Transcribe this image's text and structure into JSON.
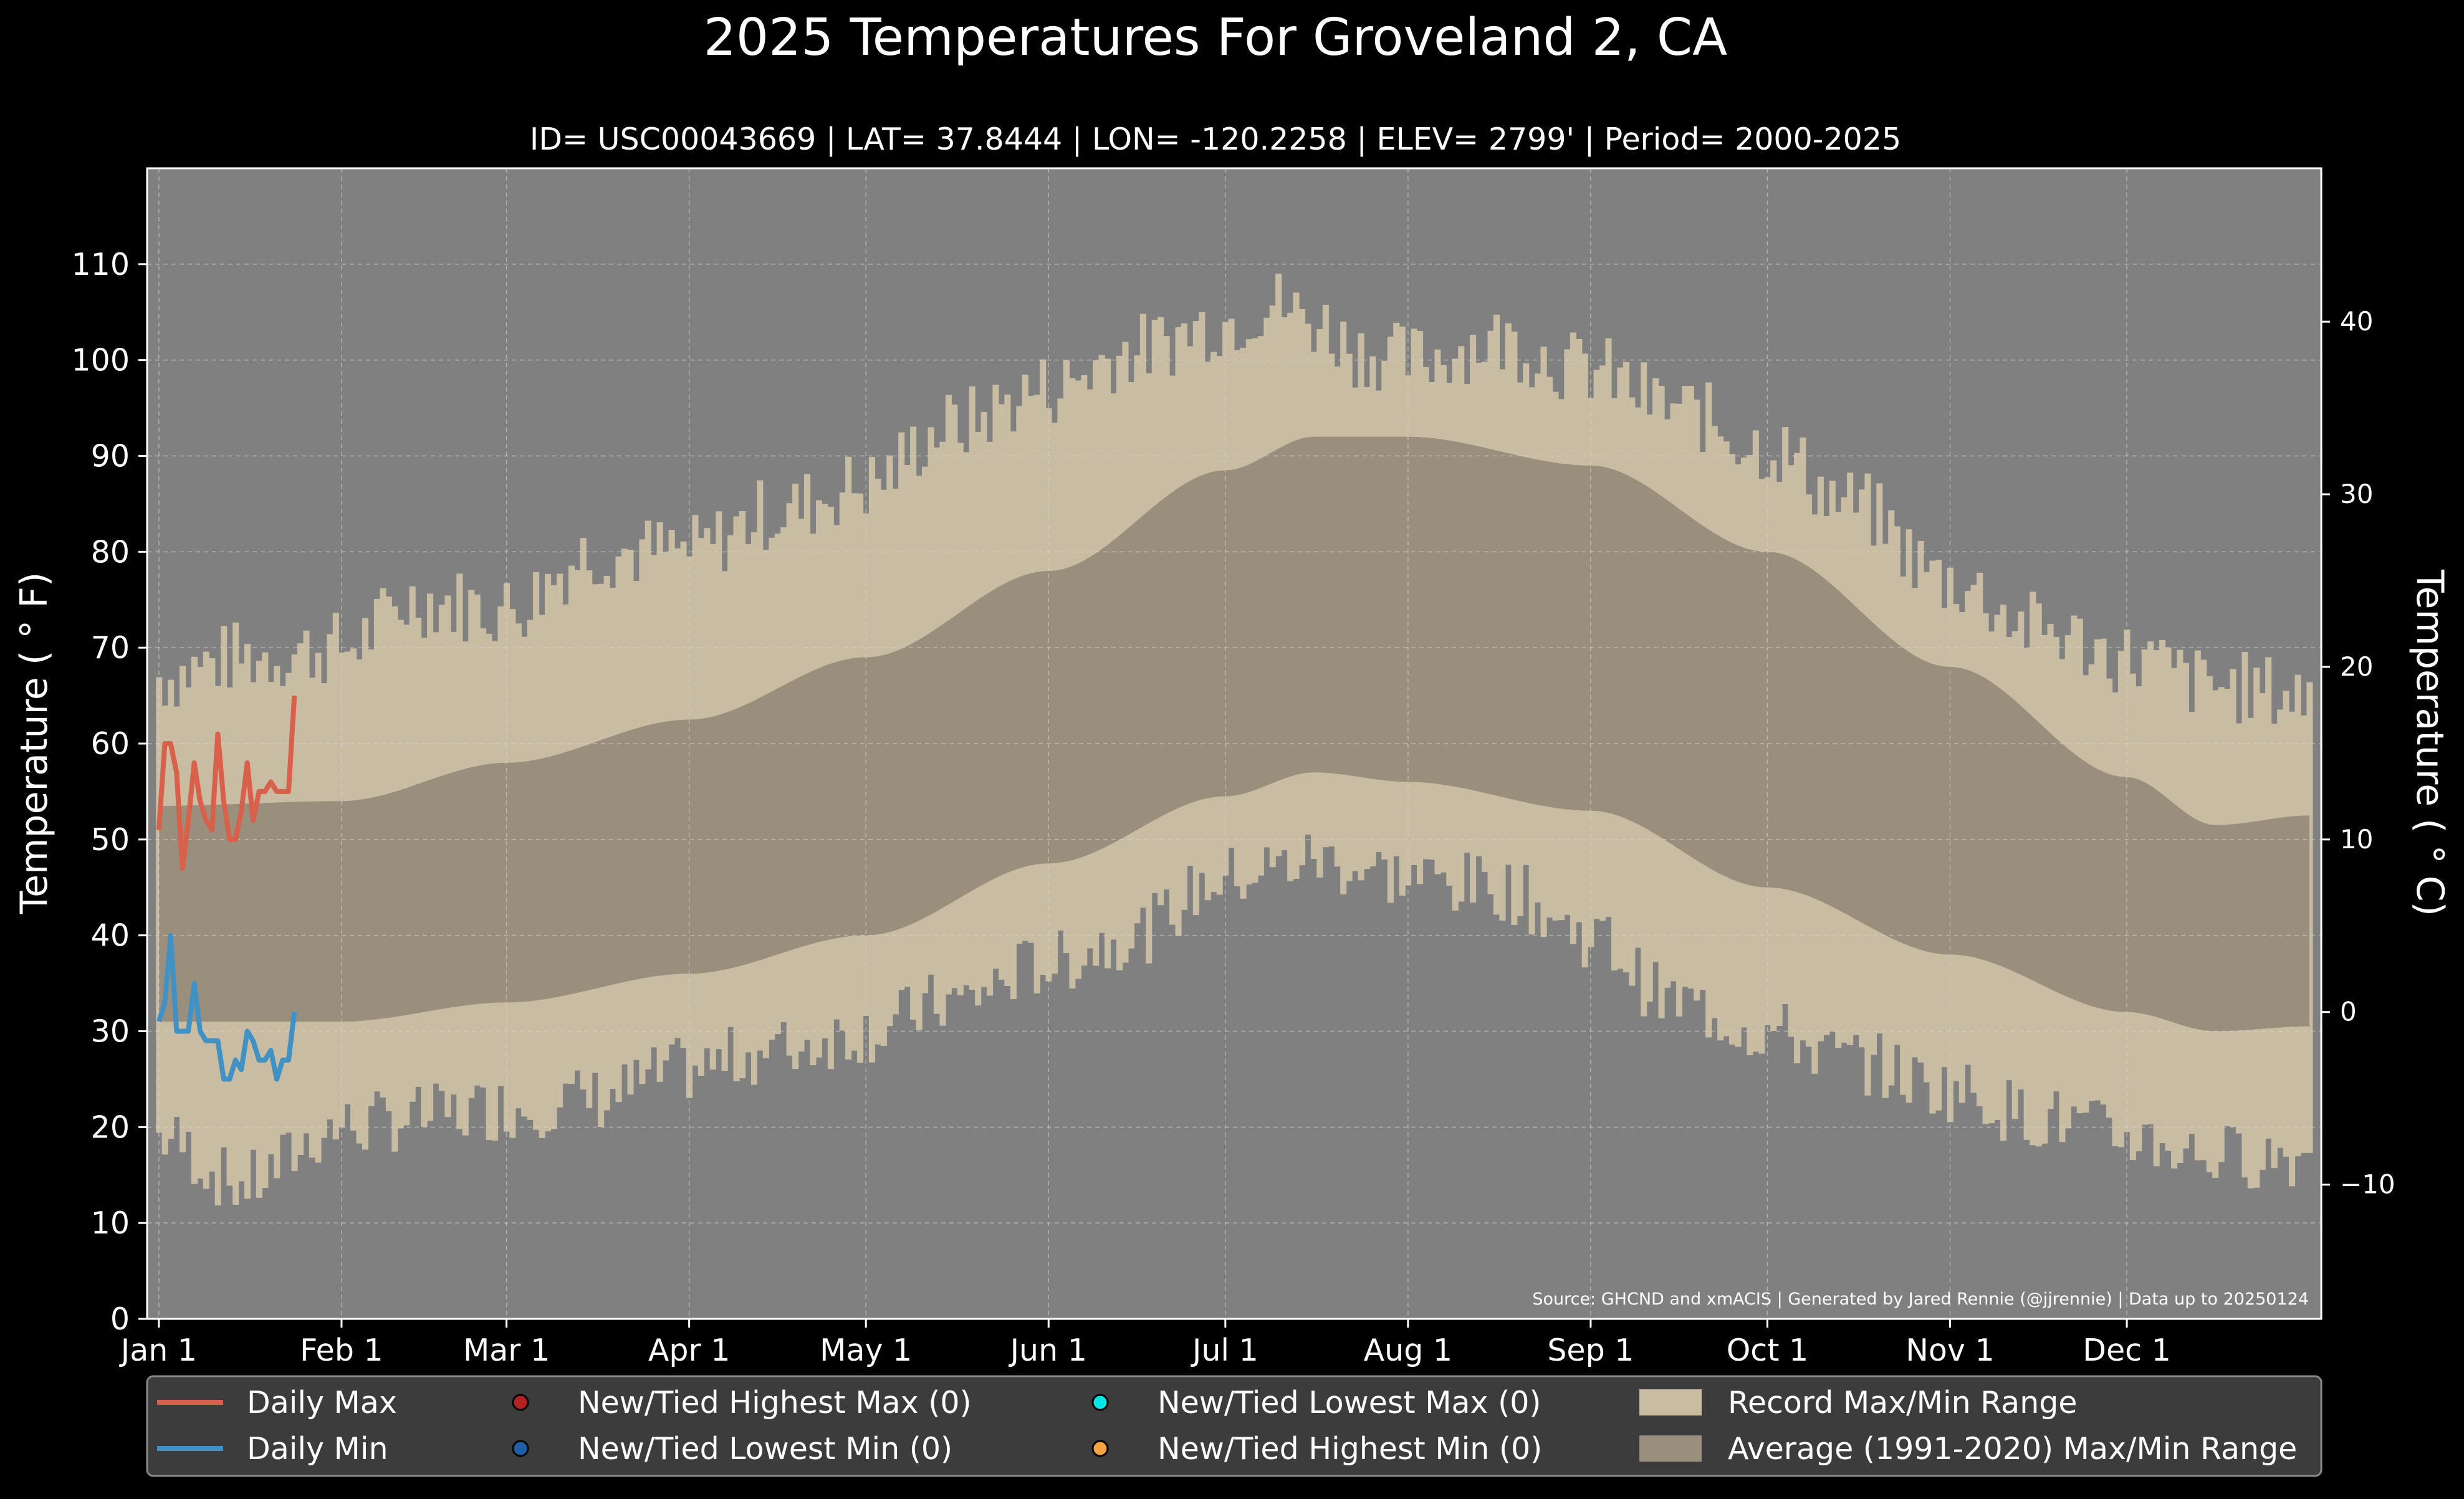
{
  "chart_data": {
    "type": "area",
    "title": "2025 Temperatures For Groveland 2, CA",
    "subtitle": "ID= USC00043669 | LAT= 37.8444 | LON= -120.2258 | ELEV= 2799' | Period= 2000-2025",
    "ylabel": "Temperature ($^\\circ$F)",
    "ylabel_display": "Temperature ( ° F)",
    "ylabel_right": "Temperature ( ° C)",
    "source_note": "Source: GHCND and xmACIS | Generated by Jared Rennie (@jjrennie) | Data up to 20250124",
    "ylim": [
      0,
      120
    ],
    "yticks": [
      0,
      10,
      20,
      30,
      40,
      50,
      60,
      70,
      80,
      90,
      100,
      110
    ],
    "yticks_right": [
      -10,
      0,
      10,
      20,
      30,
      40
    ],
    "xlim_days": [
      1,
      366
    ],
    "xticks": [
      {
        "label": "Jan 1",
        "day": 1
      },
      {
        "label": "Feb 1",
        "day": 32
      },
      {
        "label": "Mar 1",
        "day": 60
      },
      {
        "label": "Apr 1",
        "day": 91
      },
      {
        "label": "May 1",
        "day": 121
      },
      {
        "label": "Jun 1",
        "day": 152
      },
      {
        "label": "Jul 1",
        "day": 182
      },
      {
        "label": "Aug 1",
        "day": 213
      },
      {
        "label": "Sep 1",
        "day": 244
      },
      {
        "label": "Oct 1",
        "day": 274
      },
      {
        "label": "Nov 1",
        "day": 305
      },
      {
        "label": "Dec 1",
        "day": 335
      }
    ],
    "grid": true,
    "colors": {
      "background": "#000000",
      "plot_bg": "#808080",
      "record_range": "#c8bca2",
      "average_range": "#9a8f7c",
      "daily_max": "#d9604b",
      "daily_min": "#4191c4",
      "legend_bg": "#3c3c3c",
      "new_high_max": "#b22222",
      "new_low_min": "#1f5fa8",
      "new_low_max": "#00e5e5",
      "new_high_min": "#f4a340"
    },
    "series": [
      {
        "name": "Daily Max",
        "x": [
          1,
          2,
          3,
          4,
          5,
          6,
          7,
          8,
          9,
          10,
          11,
          12,
          13,
          14,
          15,
          16,
          17,
          18,
          19,
          20,
          21,
          22,
          23,
          24
        ],
        "values": [
          51,
          60,
          60,
          57,
          47,
          52,
          58,
          54,
          52,
          51,
          61,
          54,
          50,
          50,
          53,
          58,
          52,
          55,
          55,
          56,
          55,
          55,
          55,
          65
        ]
      },
      {
        "name": "Daily Min",
        "x": [
          1,
          2,
          3,
          4,
          5,
          6,
          7,
          8,
          9,
          10,
          11,
          12,
          13,
          14,
          15,
          16,
          17,
          18,
          19,
          20,
          21,
          22,
          23,
          24
        ],
        "values": [
          31,
          33,
          40,
          30,
          30,
          30,
          35,
          30,
          29,
          29,
          29,
          25,
          25,
          27,
          26,
          30,
          29,
          27,
          27,
          28,
          25,
          27,
          27,
          32
        ]
      }
    ],
    "average_range_knots": {
      "day": [
        1,
        32,
        60,
        91,
        121,
        152,
        182,
        197,
        213,
        244,
        274,
        305,
        335,
        350,
        366
      ],
      "max": [
        53.5,
        54,
        58,
        62.5,
        69,
        78,
        88.5,
        92,
        92,
        89,
        80,
        68,
        56.5,
        51.5,
        52.5
      ],
      "min": [
        31,
        31,
        33,
        36,
        40,
        47.5,
        54.5,
        57,
        56,
        53,
        45,
        38,
        32,
        30,
        30.5
      ]
    },
    "record_range_knots": {
      "day": [
        1,
        15,
        32,
        45,
        60,
        75,
        91,
        105,
        121,
        135,
        152,
        166,
        182,
        190,
        197,
        205,
        213,
        228,
        244,
        258,
        274,
        288,
        305,
        320,
        335,
        350,
        366
      ],
      "max": [
        67,
        69,
        70,
        75,
        74,
        80,
        80,
        84,
        87,
        93,
        97,
        101,
        104,
        106,
        104,
        101,
        100,
        102,
        99,
        95,
        91,
        85,
        77,
        72,
        69,
        66,
        65
      ],
      "min": [
        19,
        14,
        20,
        21,
        22,
        23,
        26,
        28,
        30,
        33,
        37,
        40,
        46,
        47,
        48,
        47,
        46,
        45,
        40,
        33,
        30,
        27,
        24,
        21,
        19,
        17,
        17
      ]
    },
    "legend": {
      "placement": "bottom",
      "entries": [
        "Daily Max",
        "Daily Min",
        "New/Tied Highest Max (0)",
        "New/Tied Lowest Min (0)",
        "New/Tied Lowest Max (0)",
        "New/Tied Highest Min (0)",
        "Record Max/Min Range",
        "Average (1991-2020) Max/Min Range"
      ]
    }
  }
}
